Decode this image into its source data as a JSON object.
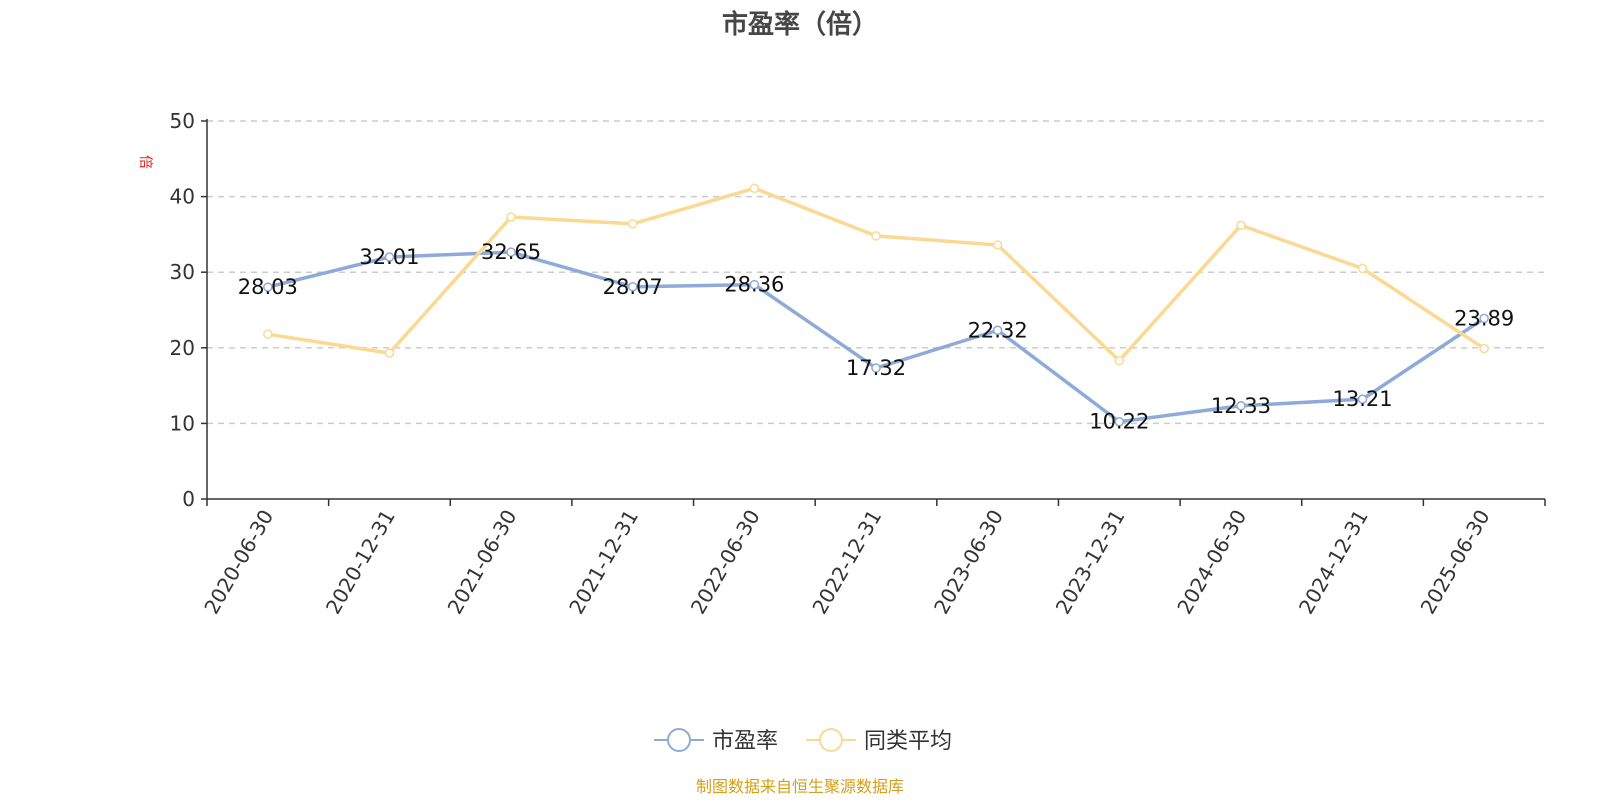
{
  "chart_data": {
    "type": "line",
    "title": "市盈率（倍）",
    "ylabel": "倍",
    "xlabel": "",
    "categories": [
      "2020-06-30",
      "2020-12-31",
      "2021-06-30",
      "2021-12-31",
      "2022-06-30",
      "2022-12-31",
      "2023-06-30",
      "2023-12-31",
      "2024-06-30",
      "2024-12-31",
      "2025-06-30"
    ],
    "ylim": [
      0,
      50
    ],
    "yticks": [
      0,
      10,
      20,
      30,
      40,
      50
    ],
    "grid": true,
    "legend_position": "bottom-center",
    "series": [
      {
        "name": "市盈率",
        "color": "#8eaad8",
        "show_labels": true,
        "values": [
          28.03,
          32.01,
          32.65,
          28.07,
          28.36,
          17.32,
          22.32,
          10.22,
          12.33,
          13.21,
          23.89
        ]
      },
      {
        "name": "同类平均",
        "color": "#fbd993",
        "show_labels": false,
        "values": [
          21.8,
          19.3,
          37.3,
          36.4,
          41.1,
          34.8,
          33.6,
          18.3,
          36.2,
          30.5,
          19.9
        ]
      }
    ]
  },
  "footer": {
    "source": "制图数据来自恒生聚源数据库",
    "color": "#d4a017"
  },
  "unit_label_color": "#e02020"
}
